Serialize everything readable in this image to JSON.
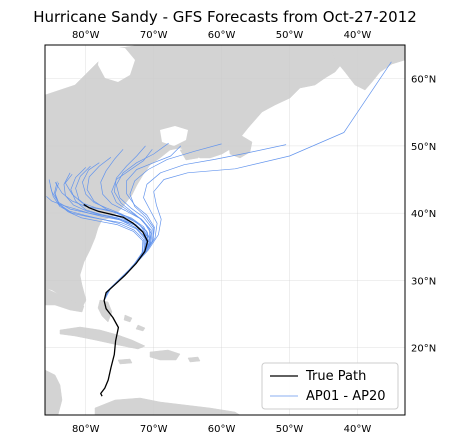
{
  "title": "Hurricane Sandy - GFS Forecasts from Oct-27-2012",
  "map": {
    "extent": {
      "lon_min": -86,
      "lon_max": -33,
      "lat_min": 10,
      "lat_max": 65
    },
    "land_color": "#d3d3d3",
    "ocean_color": "#ffffff",
    "grid": true,
    "lon_ticks": [
      {
        "value": -80,
        "label": "80°W"
      },
      {
        "value": -70,
        "label": "70°W"
      },
      {
        "value": -60,
        "label": "60°W"
      },
      {
        "value": -50,
        "label": "50°W"
      },
      {
        "value": -40,
        "label": "40°W"
      }
    ],
    "lat_ticks": [
      {
        "value": 60,
        "label": "60°N"
      },
      {
        "value": 50,
        "label": "50°N"
      },
      {
        "value": 40,
        "label": "40°N"
      },
      {
        "value": 30,
        "label": "30°N"
      },
      {
        "value": 20,
        "label": "20°N"
      }
    ]
  },
  "legend": {
    "placement": "lower-right",
    "entries": [
      {
        "label": "True Path",
        "color": "#000000"
      },
      {
        "label": "AP01 - AP20",
        "color": "#6495ed"
      }
    ]
  },
  "true_path": [
    [
      -77.6,
      12.8
    ],
    [
      -77.8,
      13.2
    ],
    [
      -77.2,
      14.0
    ],
    [
      -76.7,
      15.2
    ],
    [
      -76.3,
      17.0
    ],
    [
      -75.8,
      19.0
    ],
    [
      -75.6,
      21.0
    ],
    [
      -75.2,
      23.0
    ],
    [
      -76.0,
      24.5
    ],
    [
      -77.0,
      25.8
    ],
    [
      -77.3,
      27.0
    ],
    [
      -77.0,
      28.2
    ],
    [
      -75.8,
      29.3
    ],
    [
      -74.2,
      30.8
    ],
    [
      -72.6,
      32.5
    ],
    [
      -71.3,
      34.3
    ],
    [
      -70.9,
      35.8
    ],
    [
      -71.6,
      37.2
    ],
    [
      -73.0,
      38.5
    ],
    [
      -74.5,
      39.4
    ],
    [
      -76.5,
      39.9
    ],
    [
      -78.2,
      40.3
    ],
    [
      -79.5,
      40.8
    ],
    [
      -80.3,
      41.3
    ]
  ],
  "ensemble_tracks": [
    [
      [
        -77.3,
        27.0
      ],
      [
        -76.8,
        28.4
      ],
      [
        -75.5,
        29.6
      ],
      [
        -73.9,
        31.1
      ],
      [
        -72.3,
        32.9
      ],
      [
        -71.0,
        34.8
      ],
      [
        -70.8,
        36.5
      ],
      [
        -72.0,
        38.2
      ],
      [
        -74.0,
        39.5
      ],
      [
        -76.5,
        40.4
      ],
      [
        -78.5,
        40.8
      ],
      [
        -80.5,
        41.5
      ],
      [
        -82.0,
        42.8
      ],
      [
        -83.0,
        44.5
      ],
      [
        -82.0,
        45.8
      ]
    ],
    [
      [
        -77.3,
        27.0
      ],
      [
        -76.6,
        28.6
      ],
      [
        -75.2,
        30.0
      ],
      [
        -73.6,
        31.5
      ],
      [
        -72.0,
        33.4
      ],
      [
        -70.8,
        35.5
      ],
      [
        -71.0,
        37.3
      ],
      [
        -72.8,
        38.9
      ],
      [
        -75.0,
        40.0
      ],
      [
        -77.0,
        40.8
      ],
      [
        -78.8,
        41.6
      ],
      [
        -80.0,
        42.8
      ],
      [
        -80.5,
        44.6
      ],
      [
        -79.6,
        46.4
      ],
      [
        -78.0,
        47.5
      ]
    ],
    [
      [
        -77.3,
        27.0
      ],
      [
        -76.9,
        28.3
      ],
      [
        -75.6,
        29.5
      ],
      [
        -74.0,
        31.0
      ],
      [
        -72.5,
        32.7
      ],
      [
        -71.2,
        34.5
      ],
      [
        -70.6,
        36.3
      ],
      [
        -71.5,
        38.0
      ],
      [
        -73.3,
        39.3
      ],
      [
        -75.5,
        40.1
      ],
      [
        -77.8,
        40.6
      ],
      [
        -80.0,
        41.0
      ],
      [
        -82.0,
        41.8
      ],
      [
        -83.5,
        43.0
      ],
      [
        -84.5,
        44.6
      ]
    ],
    [
      [
        -77.3,
        27.0
      ],
      [
        -76.7,
        28.5
      ],
      [
        -75.3,
        29.8
      ],
      [
        -73.7,
        31.3
      ],
      [
        -72.2,
        33.2
      ],
      [
        -70.7,
        35.2
      ],
      [
        -70.4,
        37.0
      ],
      [
        -71.5,
        38.8
      ],
      [
        -73.2,
        40.2
      ],
      [
        -74.8,
        41.5
      ],
      [
        -75.8,
        43.2
      ],
      [
        -75.5,
        45.2
      ],
      [
        -74.0,
        47.0
      ],
      [
        -72.5,
        48.5
      ],
      [
        -71.2,
        50.0
      ]
    ],
    [
      [
        -77.3,
        27.0
      ],
      [
        -77.0,
        28.2
      ],
      [
        -75.8,
        29.4
      ],
      [
        -74.3,
        30.8
      ],
      [
        -72.8,
        32.5
      ],
      [
        -71.5,
        34.2
      ],
      [
        -71.0,
        36.0
      ],
      [
        -72.3,
        37.6
      ],
      [
        -74.5,
        38.9
      ],
      [
        -77.0,
        39.6
      ],
      [
        -79.5,
        40.0
      ],
      [
        -81.5,
        40.6
      ],
      [
        -83.5,
        41.2
      ],
      [
        -85.0,
        41.8
      ],
      [
        -85.8,
        42.5
      ]
    ],
    [
      [
        -77.3,
        27.0
      ],
      [
        -76.5,
        28.7
      ],
      [
        -75.0,
        30.2
      ],
      [
        -73.3,
        31.8
      ],
      [
        -71.6,
        33.7
      ],
      [
        -70.2,
        35.8
      ],
      [
        -70.0,
        37.8
      ],
      [
        -71.2,
        39.5
      ],
      [
        -72.8,
        41.0
      ],
      [
        -73.5,
        42.8
      ],
      [
        -72.8,
        44.8
      ],
      [
        -70.8,
        46.5
      ],
      [
        -68.0,
        48.0
      ],
      [
        -64.0,
        49.2
      ],
      [
        -60.0,
        50.3
      ]
    ],
    [
      [
        -77.3,
        27.0
      ],
      [
        -76.8,
        28.4
      ],
      [
        -75.4,
        29.7
      ],
      [
        -73.8,
        31.2
      ],
      [
        -72.2,
        33.0
      ],
      [
        -71.0,
        34.9
      ],
      [
        -71.2,
        36.8
      ],
      [
        -72.8,
        38.3
      ],
      [
        -75.3,
        39.3
      ],
      [
        -77.8,
        39.8
      ],
      [
        -80.0,
        40.5
      ],
      [
        -81.5,
        41.8
      ],
      [
        -82.2,
        43.5
      ],
      [
        -81.5,
        45.3
      ],
      [
        -80.0,
        46.8
      ]
    ],
    [
      [
        -77.3,
        27.0
      ],
      [
        -76.6,
        28.6
      ],
      [
        -75.1,
        30.1
      ],
      [
        -73.5,
        31.7
      ],
      [
        -71.9,
        33.6
      ],
      [
        -70.6,
        35.6
      ],
      [
        -70.6,
        37.6
      ],
      [
        -72.0,
        39.2
      ],
      [
        -74.2,
        40.4
      ],
      [
        -76.2,
        41.4
      ],
      [
        -77.5,
        42.8
      ],
      [
        -77.8,
        44.6
      ],
      [
        -77.0,
        46.3
      ],
      [
        -75.8,
        48.0
      ],
      [
        -74.5,
        49.5
      ]
    ],
    [
      [
        -77.3,
        27.0
      ],
      [
        -76.9,
        28.3
      ],
      [
        -75.7,
        29.5
      ],
      [
        -74.2,
        30.9
      ],
      [
        -72.7,
        32.6
      ],
      [
        -71.4,
        34.4
      ],
      [
        -71.3,
        36.2
      ],
      [
        -72.6,
        37.7
      ],
      [
        -74.8,
        38.6
      ],
      [
        -77.2,
        39.0
      ],
      [
        -79.8,
        39.5
      ],
      [
        -82.0,
        40.0
      ],
      [
        -83.8,
        41.0
      ],
      [
        -84.8,
        42.5
      ],
      [
        -85.2,
        44.0
      ]
    ],
    [
      [
        -77.3,
        27.0
      ],
      [
        -76.4,
        28.8
      ],
      [
        -74.8,
        30.4
      ],
      [
        -73.0,
        32.1
      ],
      [
        -71.2,
        34.1
      ],
      [
        -69.8,
        36.3
      ],
      [
        -69.5,
        38.5
      ],
      [
        -70.5,
        40.4
      ],
      [
        -71.5,
        42.3
      ],
      [
        -71.0,
        44.3
      ],
      [
        -69.0,
        46.0
      ],
      [
        -65.5,
        47.2
      ],
      [
        -61.0,
        48.0
      ],
      [
        -56.0,
        49.0
      ],
      [
        -50.5,
        50.2
      ]
    ],
    [
      [
        -77.3,
        27.0
      ],
      [
        -76.8,
        28.4
      ],
      [
        -75.5,
        29.6
      ],
      [
        -74.0,
        31.1
      ],
      [
        -72.4,
        32.8
      ],
      [
        -71.1,
        34.7
      ],
      [
        -71.0,
        36.6
      ],
      [
        -72.5,
        38.1
      ],
      [
        -75.0,
        39.1
      ],
      [
        -77.5,
        39.7
      ],
      [
        -79.8,
        40.3
      ],
      [
        -81.8,
        41.2
      ],
      [
        -83.0,
        42.6
      ],
      [
        -83.2,
        44.3
      ],
      [
        -82.3,
        46.0
      ]
    ],
    [
      [
        -77.3,
        27.0
      ],
      [
        -76.6,
        28.6
      ],
      [
        -75.2,
        30.0
      ],
      [
        -73.6,
        31.6
      ],
      [
        -71.9,
        33.5
      ],
      [
        -70.5,
        35.5
      ],
      [
        -70.4,
        37.5
      ],
      [
        -71.8,
        39.1
      ],
      [
        -73.8,
        40.4
      ],
      [
        -75.5,
        41.6
      ],
      [
        -76.2,
        43.2
      ],
      [
        -75.5,
        45.0
      ],
      [
        -73.5,
        46.4
      ],
      [
        -71.5,
        47.8
      ],
      [
        -70.2,
        49.5
      ]
    ],
    [
      [
        -77.3,
        27.0
      ],
      [
        -77.0,
        28.2
      ],
      [
        -75.9,
        29.3
      ],
      [
        -74.4,
        30.7
      ],
      [
        -72.9,
        32.4
      ],
      [
        -71.7,
        34.1
      ],
      [
        -71.6,
        35.9
      ],
      [
        -73.0,
        37.3
      ],
      [
        -75.4,
        38.3
      ],
      [
        -78.0,
        38.8
      ],
      [
        -80.6,
        39.3
      ],
      [
        -82.6,
        40.2
      ],
      [
        -84.0,
        41.4
      ],
      [
        -84.6,
        43.0
      ],
      [
        -84.2,
        44.7
      ]
    ],
    [
      [
        -77.3,
        27.0
      ],
      [
        -76.5,
        28.7
      ],
      [
        -75.0,
        30.2
      ],
      [
        -73.3,
        31.8
      ],
      [
        -71.6,
        33.8
      ],
      [
        -70.1,
        35.9
      ],
      [
        -69.9,
        37.9
      ],
      [
        -71.0,
        39.7
      ],
      [
        -72.8,
        41.2
      ],
      [
        -74.0,
        42.9
      ],
      [
        -74.0,
        44.8
      ],
      [
        -72.5,
        46.5
      ],
      [
        -70.0,
        47.5
      ],
      [
        -67.5,
        48.5
      ],
      [
        -66.0,
        50.0
      ]
    ],
    [
      [
        -77.3,
        27.0
      ],
      [
        -76.7,
        28.5
      ],
      [
        -75.3,
        29.9
      ],
      [
        -73.7,
        31.4
      ],
      [
        -72.1,
        33.2
      ],
      [
        -70.8,
        35.2
      ],
      [
        -70.9,
        37.1
      ],
      [
        -72.5,
        38.6
      ],
      [
        -74.8,
        39.7
      ],
      [
        -77.0,
        40.6
      ],
      [
        -78.8,
        41.8
      ],
      [
        -79.8,
        43.5
      ],
      [
        -79.5,
        45.4
      ],
      [
        -78.0,
        47.0
      ],
      [
        -76.3,
        48.3
      ]
    ],
    [
      [
        -77.3,
        27.0
      ],
      [
        -76.9,
        28.3
      ],
      [
        -75.6,
        29.5
      ],
      [
        -74.1,
        31.0
      ],
      [
        -72.6,
        32.7
      ],
      [
        -71.3,
        34.5
      ],
      [
        -71.2,
        36.4
      ],
      [
        -72.7,
        37.9
      ],
      [
        -75.0,
        39.0
      ],
      [
        -77.5,
        39.5
      ],
      [
        -80.0,
        40.1
      ],
      [
        -82.3,
        40.6
      ],
      [
        -84.0,
        41.6
      ],
      [
        -85.0,
        43.2
      ],
      [
        -85.4,
        45.0
      ]
    ],
    [
      [
        -77.3,
        27.0
      ],
      [
        -76.3,
        28.9
      ],
      [
        -74.6,
        30.6
      ],
      [
        -72.7,
        32.4
      ],
      [
        -70.8,
        34.5
      ],
      [
        -69.3,
        36.8
      ],
      [
        -68.9,
        39.1
      ],
      [
        -69.6,
        41.2
      ],
      [
        -70.0,
        43.2
      ],
      [
        -68.5,
        45.0
      ],
      [
        -65.0,
        46.0
      ],
      [
        -58.0,
        46.6
      ],
      [
        -50.0,
        48.5
      ],
      [
        -42.0,
        52.0
      ],
      [
        -35.0,
        62.5
      ]
    ],
    [
      [
        -77.3,
        27.0
      ],
      [
        -76.8,
        28.4
      ],
      [
        -75.4,
        29.7
      ],
      [
        -73.8,
        31.2
      ],
      [
        -72.3,
        33.0
      ],
      [
        -71.0,
        34.9
      ],
      [
        -71.0,
        36.8
      ],
      [
        -72.6,
        38.3
      ],
      [
        -75.0,
        39.4
      ],
      [
        -77.4,
        40.1
      ],
      [
        -79.5,
        40.8
      ],
      [
        -81.0,
        42.0
      ],
      [
        -81.5,
        43.7
      ],
      [
        -80.8,
        45.5
      ],
      [
        -79.3,
        47.0
      ]
    ],
    [
      [
        -77.3,
        27.0
      ],
      [
        -76.6,
        28.6
      ],
      [
        -75.1,
        30.1
      ],
      [
        -73.5,
        31.7
      ],
      [
        -71.8,
        33.6
      ],
      [
        -70.4,
        35.7
      ],
      [
        -70.2,
        37.7
      ],
      [
        -71.5,
        39.4
      ],
      [
        -73.4,
        40.8
      ],
      [
        -75.0,
        42.3
      ],
      [
        -75.5,
        44.2
      ],
      [
        -74.5,
        46.0
      ],
      [
        -72.5,
        47.5
      ],
      [
        -70.0,
        48.8
      ],
      [
        -67.8,
        50.4
      ]
    ],
    [
      [
        -77.3,
        27.0
      ],
      [
        -77.0,
        28.2
      ],
      [
        -75.8,
        29.4
      ],
      [
        -74.3,
        30.8
      ],
      [
        -72.8,
        32.5
      ],
      [
        -71.6,
        34.3
      ],
      [
        -71.5,
        36.1
      ],
      [
        -72.9,
        37.5
      ],
      [
        -75.2,
        38.5
      ],
      [
        -77.7,
        39.1
      ],
      [
        -80.2,
        39.7
      ],
      [
        -82.4,
        40.3
      ],
      [
        -83.9,
        41.3
      ],
      [
        -84.5,
        42.9
      ],
      [
        -84.0,
        44.5
      ]
    ]
  ]
}
